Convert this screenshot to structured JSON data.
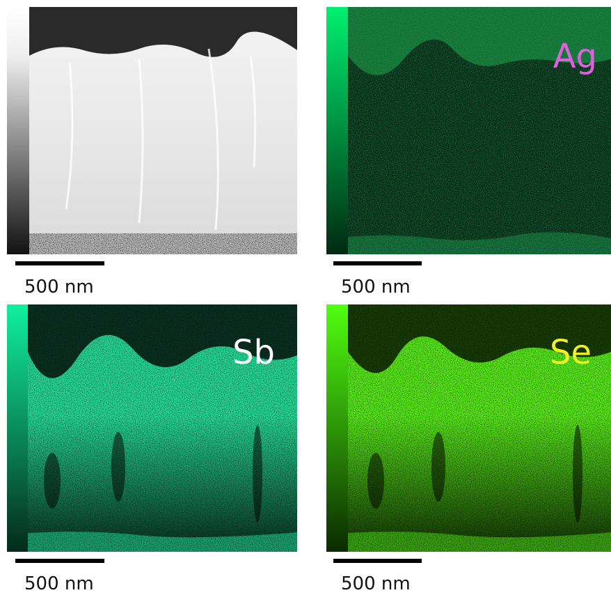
{
  "panels": [
    {
      "scale_bar": "500 nm"
    },
    {
      "label": "Ag",
      "scale_bar": "500 nm"
    },
    {
      "label": "Sb",
      "scale_bar": "500 nm"
    },
    {
      "label": "Se",
      "scale_bar": "500 nm"
    }
  ]
}
